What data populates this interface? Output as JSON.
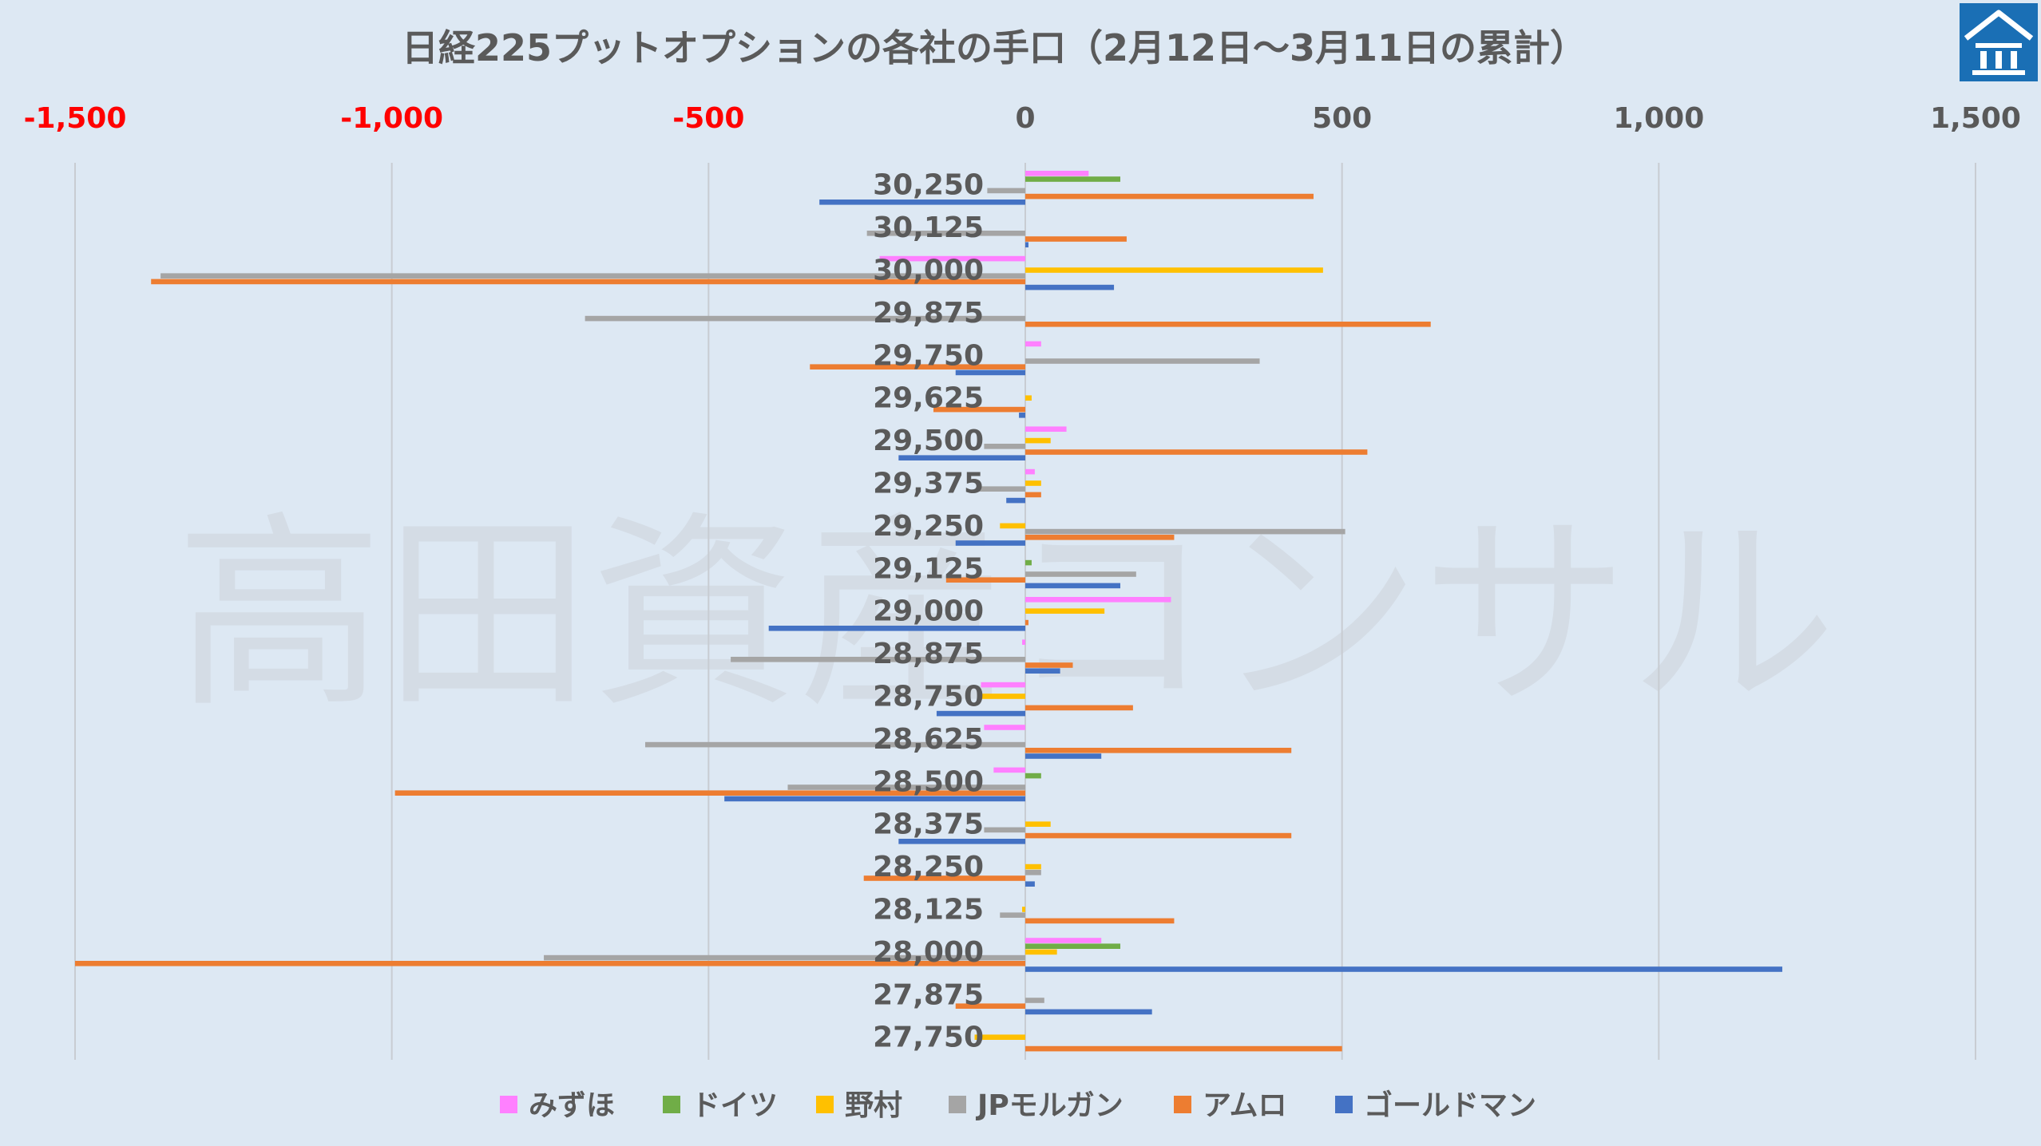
{
  "chart_data": {
    "type": "bar",
    "orientation": "horizontal",
    "title": "日経225プットオプションの各社の手口（2月12日～3月11日の累計）",
    "xlim": [
      -1500,
      1500
    ],
    "xticks": [
      -1500,
      -1000,
      -500,
      0,
      500,
      1000,
      1500
    ],
    "xtick_labels": [
      "-1,500",
      "-1,000",
      "-500",
      "0",
      "500",
      "1,000",
      "1,500"
    ],
    "negative_tick_color": "#ff0000",
    "positive_tick_color": "#595959",
    "grid": "vertical",
    "legend_position": "bottom",
    "categories": [
      "30,250",
      "30,125",
      "30,000",
      "29,875",
      "29,750",
      "29,625",
      "29,500",
      "29,375",
      "29,250",
      "29,125",
      "29,000",
      "28,875",
      "28,750",
      "28,625",
      "28,500",
      "28,375",
      "28,250",
      "28,125",
      "28,000",
      "27,875",
      "27,750"
    ],
    "series": [
      {
        "name": "みずほ",
        "color": "#ff80ff",
        "values": [
          100,
          0,
          -230,
          0,
          25,
          0,
          65,
          15,
          0,
          0,
          230,
          -5,
          -70,
          -65,
          -50,
          0,
          0,
          0,
          120,
          0,
          0
        ]
      },
      {
        "name": "ドイツ",
        "color": "#70ad47",
        "values": [
          150,
          0,
          0,
          0,
          0,
          0,
          0,
          0,
          0,
          10,
          0,
          0,
          0,
          0,
          25,
          0,
          0,
          0,
          150,
          0,
          0
        ]
      },
      {
        "name": "野村",
        "color": "#ffc000",
        "values": [
          0,
          0,
          470,
          0,
          0,
          10,
          40,
          25,
          -40,
          0,
          125,
          0,
          -70,
          0,
          0,
          40,
          25,
          -5,
          50,
          0,
          -80
        ]
      },
      {
        "name": "JPモルガン",
        "color": "#a5a5a5",
        "values": [
          -60,
          -250,
          -1365,
          -695,
          370,
          0,
          -65,
          -75,
          505,
          175,
          0,
          -465,
          0,
          -600,
          -375,
          -65,
          25,
          -40,
          -760,
          30,
          0
        ]
      },
      {
        "name": "アムロ",
        "color": "#ed7d31",
        "values": [
          455,
          160,
          -1380,
          640,
          -340,
          -145,
          540,
          25,
          235,
          -125,
          5,
          75,
          170,
          420,
          -995,
          420,
          -255,
          235,
          -1500,
          -110,
          500
        ]
      },
      {
        "name": "ゴールドマン",
        "color": "#4472c4",
        "values": [
          -325,
          5,
          140,
          0,
          -110,
          -10,
          -200,
          -30,
          -110,
          150,
          -405,
          55,
          -140,
          120,
          -475,
          -200,
          15,
          0,
          1195,
          200,
          0
        ]
      }
    ]
  },
  "watermark": "高田資産コンサル",
  "logo": {
    "icon": "house-logo-icon",
    "color": "#1a6fb5"
  }
}
